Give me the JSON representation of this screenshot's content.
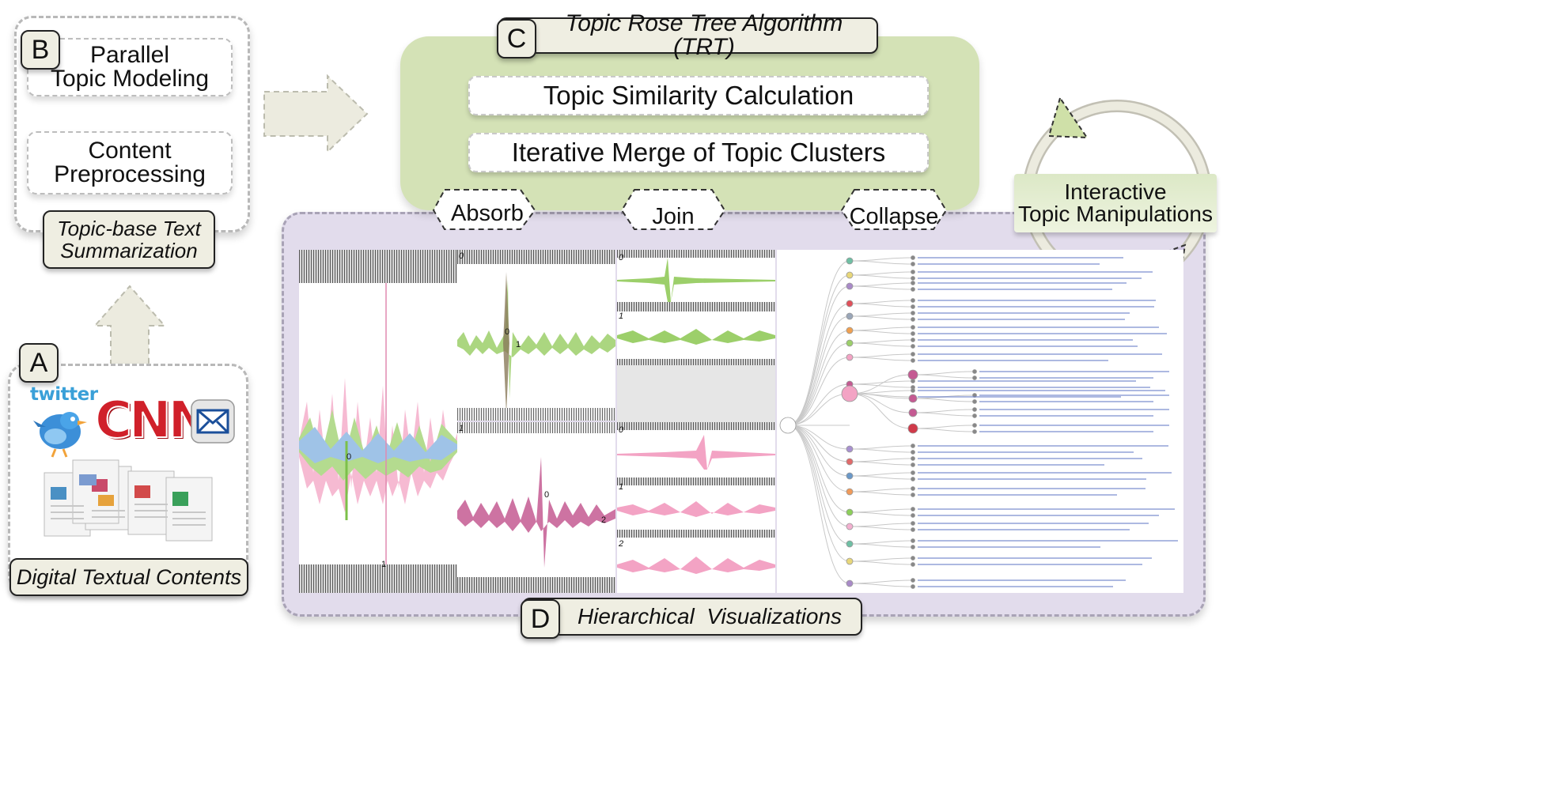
{
  "section_a": {
    "letter": "A",
    "title": "Digital Textual Contents",
    "icons": [
      "twitter-bird-icon",
      "cnn-logo",
      "mail-icon",
      "newsletter-documents"
    ]
  },
  "section_a_logo_text": {
    "twitter": "twitter",
    "cnn": "CNN"
  },
  "section_b": {
    "letter": "B",
    "step1": "Parallel\nTopic Modeling",
    "step2": "Content\nPreprocessing",
    "title": "Topic-base Text\nSummarization"
  },
  "section_c": {
    "letter": "C",
    "title": "Topic Rose Tree Algorithm (TRT)",
    "step1": "Topic Similarity Calculation",
    "step2": "Iterative Merge of Topic Clusters",
    "operations": [
      "Absorb",
      "Join",
      "Collapse"
    ]
  },
  "section_d": {
    "letter": "D",
    "title": "Hierarchical  Visualizations"
  },
  "interactive": {
    "label": "Interactive\nTopic Manipulations"
  },
  "panel_labels": {
    "p1_mid": "0",
    "p1_bottom": "1",
    "p2_top": "0",
    "p2_mid_a": "0",
    "p2_mid_b": "1",
    "p2b_top": "1",
    "p2b_mid": "0",
    "p2b_right": "2",
    "p3_a": "0",
    "p3_b": "1",
    "p3_c": "0",
    "p3_d": "1",
    "p3_e": "2"
  },
  "colors": {
    "green_panel": "#d4e2b6",
    "purple_panel": "#e2dcec",
    "arrow_fill": "#ecebdf",
    "tag_fill": "#efeee2"
  }
}
